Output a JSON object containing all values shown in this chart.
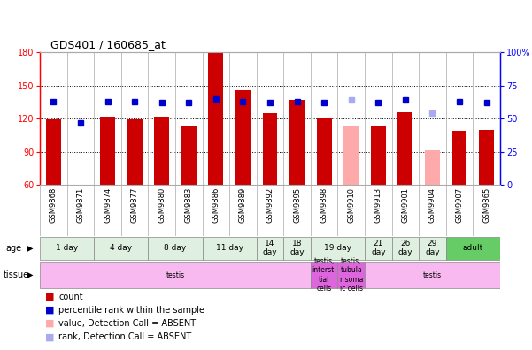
{
  "title": "GDS401 / 160685_at",
  "samples": [
    "GSM9868",
    "GSM9871",
    "GSM9874",
    "GSM9877",
    "GSM9880",
    "GSM9883",
    "GSM9886",
    "GSM9889",
    "GSM9892",
    "GSM9895",
    "GSM9898",
    "GSM9910",
    "GSM9913",
    "GSM9901",
    "GSM9904",
    "GSM9907",
    "GSM9865"
  ],
  "bar_values": [
    119,
    60,
    122,
    119,
    122,
    114,
    180,
    146,
    125,
    137,
    121,
    113,
    113,
    126,
    91,
    109,
    110
  ],
  "bar_absent": [
    false,
    false,
    false,
    false,
    false,
    false,
    false,
    false,
    false,
    false,
    false,
    true,
    false,
    false,
    true,
    false,
    false
  ],
  "percentile_values": [
    63,
    47,
    63,
    63,
    62,
    62,
    65,
    63,
    62,
    63,
    62,
    64,
    62,
    64,
    54,
    63,
    62
  ],
  "percentile_absent": [
    false,
    false,
    false,
    false,
    false,
    false,
    false,
    false,
    false,
    false,
    false,
    true,
    false,
    false,
    true,
    false,
    false
  ],
  "y_min": 60,
  "y_max": 180,
  "y_ticks": [
    60,
    90,
    120,
    150,
    180
  ],
  "right_y_ticks": [
    0,
    25,
    50,
    75,
    100
  ],
  "age_groups": [
    {
      "label": "1 day",
      "start": 0,
      "end": 2,
      "color": "#e0f0e0"
    },
    {
      "label": "4 day",
      "start": 2,
      "end": 4,
      "color": "#e0f0e0"
    },
    {
      "label": "8 day",
      "start": 4,
      "end": 6,
      "color": "#e0f0e0"
    },
    {
      "label": "11 day",
      "start": 6,
      "end": 8,
      "color": "#e0f0e0"
    },
    {
      "label": "14\nday",
      "start": 8,
      "end": 9,
      "color": "#e0f0e0"
    },
    {
      "label": "18\nday",
      "start": 9,
      "end": 10,
      "color": "#e0f0e0"
    },
    {
      "label": "19 day",
      "start": 10,
      "end": 12,
      "color": "#e0f0e0"
    },
    {
      "label": "21\nday",
      "start": 12,
      "end": 13,
      "color": "#e0f0e0"
    },
    {
      "label": "26\nday",
      "start": 13,
      "end": 14,
      "color": "#e0f0e0"
    },
    {
      "label": "29\nday",
      "start": 14,
      "end": 15,
      "color": "#e0f0e0"
    },
    {
      "label": "adult",
      "start": 15,
      "end": 17,
      "color": "#66cc66"
    }
  ],
  "tissue_groups": [
    {
      "label": "testis",
      "start": 0,
      "end": 10,
      "color": "#f8b8f0"
    },
    {
      "label": "testis,\nintersti\ntial\ncells",
      "start": 10,
      "end": 11,
      "color": "#dd66dd"
    },
    {
      "label": "testis,\ntubula\nr soma\nic cells",
      "start": 11,
      "end": 12,
      "color": "#dd66dd"
    },
    {
      "label": "testis",
      "start": 12,
      "end": 17,
      "color": "#f8b8f0"
    }
  ],
  "bar_color": "#cc0000",
  "bar_absent_color": "#ffaaaa",
  "percentile_color": "#0000cc",
  "percentile_absent_color": "#aaaaee",
  "legend_items": [
    {
      "color": "#cc0000",
      "label": "count"
    },
    {
      "color": "#0000cc",
      "label": "percentile rank within the sample"
    },
    {
      "color": "#ffaaaa",
      "label": "value, Detection Call = ABSENT"
    },
    {
      "color": "#aaaaee",
      "label": "rank, Detection Call = ABSENT"
    }
  ]
}
